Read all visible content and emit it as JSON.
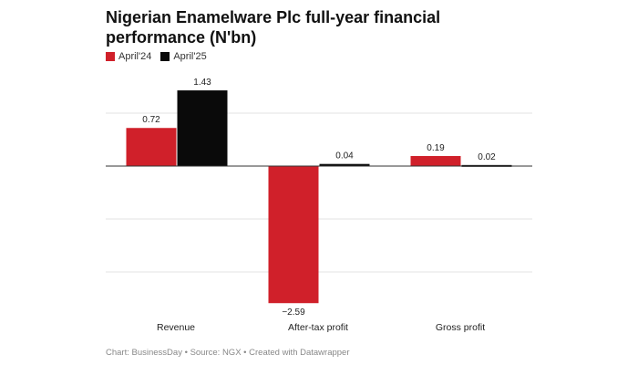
{
  "chart_data": {
    "type": "bar",
    "title": "Nigerian Enamelware Plc full-year financial performance (N'bn)",
    "categories": [
      "Revenue",
      "After-tax profit",
      "Gross profit"
    ],
    "series": [
      {
        "name": "April'24",
        "color": "#d0202a",
        "values": [
          0.72,
          -2.59,
          0.19
        ],
        "labels": [
          "0.72",
          "−2.59",
          "0.19"
        ]
      },
      {
        "name": "April'25",
        "color": "#0a0a0a",
        "values": [
          1.43,
          0.04,
          0.02
        ],
        "labels": [
          "1.43",
          "0.04",
          "0.02"
        ]
      }
    ],
    "ylim": [
      -2.6,
      1.5
    ],
    "gridlines": [
      1.0,
      -1.0,
      -2.0
    ],
    "xlabel": "",
    "ylabel": "",
    "legend_position": "top-left"
  },
  "footer": {
    "chart": "Chart: BusinessDay",
    "source": "Source: NGX",
    "created": "Created with Datawrapper",
    "separator": " • "
  }
}
